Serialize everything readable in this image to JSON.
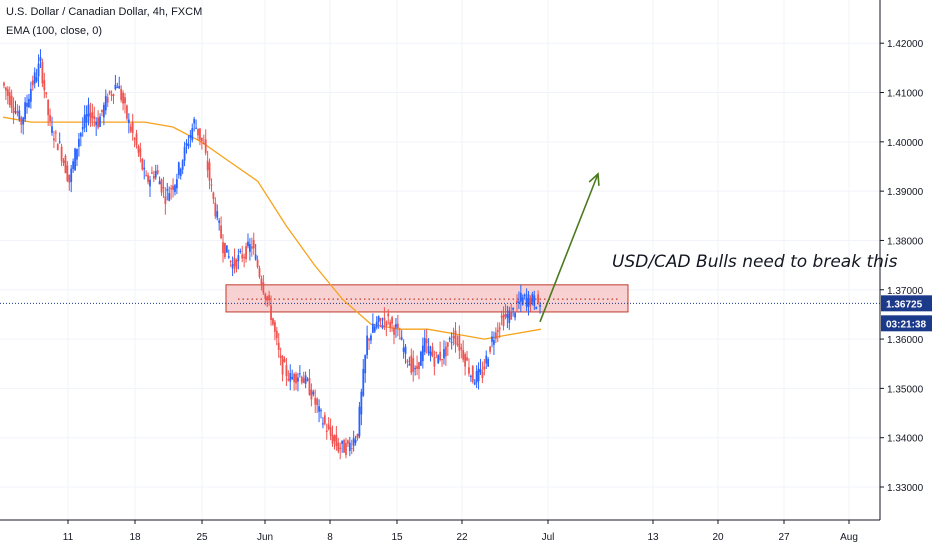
{
  "header": {
    "symbol_line": "U.S. Dollar / Canadian Dollar, 4h, FXCM",
    "indicator_line": "EMA (100, close, 0)"
  },
  "chart_data": {
    "type": "candlestick",
    "title": "U.S. Dollar / Canadian Dollar, 4h, FXCM",
    "x_ticks": [
      "11",
      "18",
      "25",
      "Jun",
      "8",
      "15",
      "22",
      "Jul",
      "13",
      "20",
      "27",
      "Aug"
    ],
    "y_ticks": [
      "1.42000",
      "1.41000",
      "1.40000",
      "1.39000",
      "1.38000",
      "1.37000",
      "1.36000",
      "1.35000",
      "1.34000",
      "1.33000"
    ],
    "ylim": [
      1.325,
      1.4265
    ],
    "grid": true,
    "price_series": [
      {
        "date": "May 5",
        "close": 1.412
      },
      {
        "date": "May 6",
        "close": 1.408
      },
      {
        "date": "May 7",
        "close": 1.404
      },
      {
        "date": "May 8",
        "close": 1.411
      },
      {
        "date": "May 9",
        "close": 1.416
      },
      {
        "date": "May 10",
        "close": 1.403
      },
      {
        "date": "May 11",
        "close": 1.399
      },
      {
        "date": "May 12",
        "close": 1.392
      },
      {
        "date": "May 13",
        "close": 1.401
      },
      {
        "date": "May 14",
        "close": 1.406
      },
      {
        "date": "May 15",
        "close": 1.404
      },
      {
        "date": "May 16",
        "close": 1.409
      },
      {
        "date": "May 17",
        "close": 1.412
      },
      {
        "date": "May 18",
        "close": 1.405
      },
      {
        "date": "May 19",
        "close": 1.399
      },
      {
        "date": "May 20",
        "close": 1.392
      },
      {
        "date": "May 21",
        "close": 1.394
      },
      {
        "date": "May 22",
        "close": 1.389
      },
      {
        "date": "May 23",
        "close": 1.392
      },
      {
        "date": "May 24",
        "close": 1.398
      },
      {
        "date": "May 25",
        "close": 1.404
      },
      {
        "date": "May 26",
        "close": 1.399
      },
      {
        "date": "May 27",
        "close": 1.388
      },
      {
        "date": "May 28",
        "close": 1.379
      },
      {
        "date": "May 29",
        "close": 1.375
      },
      {
        "date": "May 30",
        "close": 1.377
      },
      {
        "date": "May 31",
        "close": 1.379
      },
      {
        "date": "Jun 1",
        "close": 1.372
      },
      {
        "date": "Jun 2",
        "close": 1.365
      },
      {
        "date": "Jun 3",
        "close": 1.355
      },
      {
        "date": "Jun 4",
        "close": 1.352
      },
      {
        "date": "Jun 5",
        "close": 1.353
      },
      {
        "date": "Jun 6",
        "close": 1.35
      },
      {
        "date": "Jun 7",
        "close": 1.345
      },
      {
        "date": "Jun 8",
        "close": 1.341
      },
      {
        "date": "Jun 9",
        "close": 1.338
      },
      {
        "date": "Jun 10",
        "close": 1.338
      },
      {
        "date": "Jun 11",
        "close": 1.341
      },
      {
        "date": "Jun 12",
        "close": 1.36
      },
      {
        "date": "Jun 13",
        "close": 1.363
      },
      {
        "date": "Jun 14",
        "close": 1.364
      },
      {
        "date": "Jun 15",
        "close": 1.362
      },
      {
        "date": "Jun 16",
        "close": 1.357
      },
      {
        "date": "Jun 17",
        "close": 1.353
      },
      {
        "date": "Jun 18",
        "close": 1.359
      },
      {
        "date": "Jun 19",
        "close": 1.356
      },
      {
        "date": "Jun 20",
        "close": 1.357
      },
      {
        "date": "Jun 21",
        "close": 1.361
      },
      {
        "date": "Jun 22",
        "close": 1.357
      },
      {
        "date": "Jun 23",
        "close": 1.352
      },
      {
        "date": "Jun 24",
        "close": 1.353
      },
      {
        "date": "Jun 25",
        "close": 1.36
      },
      {
        "date": "Jun 26",
        "close": 1.364
      },
      {
        "date": "Jun 27",
        "close": 1.365
      },
      {
        "date": "Jun 28",
        "close": 1.368
      },
      {
        "date": "Jun 29",
        "close": 1.368
      },
      {
        "date": "Jun 30",
        "close": 1.3672
      }
    ],
    "ema_series": [
      {
        "date": "May 5",
        "value": 1.405
      },
      {
        "date": "May 8",
        "value": 1.404
      },
      {
        "date": "May 11",
        "value": 1.404
      },
      {
        "date": "May 14",
        "value": 1.404
      },
      {
        "date": "May 17",
        "value": 1.404
      },
      {
        "date": "May 20",
        "value": 1.404
      },
      {
        "date": "May 23",
        "value": 1.403
      },
      {
        "date": "May 26",
        "value": 1.4
      },
      {
        "date": "May 29",
        "value": 1.396
      },
      {
        "date": "Jun 1",
        "value": 1.392
      },
      {
        "date": "Jun 4",
        "value": 1.383
      },
      {
        "date": "Jun 7",
        "value": 1.375
      },
      {
        "date": "Jun 10",
        "value": 1.368
      },
      {
        "date": "Jun 13",
        "value": 1.363
      },
      {
        "date": "Jun 16",
        "value": 1.362
      },
      {
        "date": "Jun 19",
        "value": 1.362
      },
      {
        "date": "Jun 22",
        "value": 1.361
      },
      {
        "date": "Jun 25",
        "value": 1.36
      },
      {
        "date": "Jun 28",
        "value": 1.361
      },
      {
        "date": "Jun 30",
        "value": 1.362
      }
    ],
    "resistance_zone": {
      "from": 1.3655,
      "to": 1.371,
      "start_date": "May 27",
      "end_date": "Jul 11"
    },
    "dotted_level": 1.3675,
    "annotation": "USD/CAD Bulls need to break this",
    "projection_arrow": {
      "from_date": "Jun 30",
      "from_price": 1.3635,
      "to_date": "Jul 6",
      "to_price": 1.3935
    },
    "last_price_label": "1.36725",
    "countdown_label": "03:21:38"
  },
  "colors": {
    "bull": "#2962ff",
    "bear": "#ef5350",
    "ema": "#f7a21b",
    "zone_fill": "#f5c3c3",
    "zone_border": "#c0392b",
    "arrow": "#4b7a1e",
    "price_line": "#1e3a8a",
    "tag_bg": "#1c3a8a",
    "grid": "#f0f3fa",
    "axis": "#131722"
  }
}
